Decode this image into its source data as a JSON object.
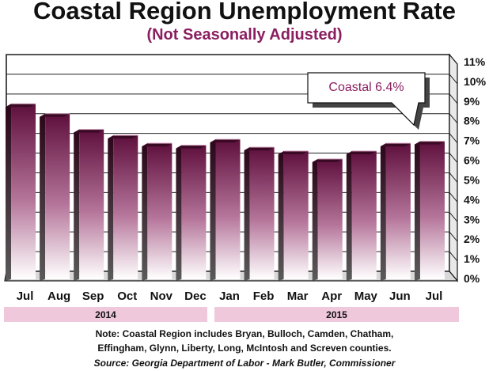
{
  "title": "Coastal Region Unemployment Rate",
  "subtitle": "(Not Seasonally Adjusted)",
  "chart_data": {
    "type": "bar",
    "title": "Coastal Region Unemployment Rate",
    "subtitle": "(Not Seasonally Adjusted)",
    "categories": [
      "Jul",
      "Aug",
      "Sep",
      "Oct",
      "Nov",
      "Dec",
      "Jan",
      "Feb",
      "Mar",
      "Apr",
      "May",
      "Jun",
      "Jul"
    ],
    "values": [
      8.5,
      8.0,
      7.2,
      6.9,
      6.5,
      6.4,
      6.7,
      6.3,
      6.1,
      5.7,
      6.1,
      6.5,
      6.6
    ],
    "ylim": [
      0,
      11
    ],
    "yticks": [
      "0%",
      "1%",
      "2%",
      "3%",
      "4%",
      "5%",
      "6%",
      "7%",
      "8%",
      "9%",
      "10%",
      "11%"
    ],
    "xlabel": "",
    "ylabel": "",
    "grid": true,
    "year_groups": [
      {
        "label": "2014",
        "start": 0,
        "end": 5
      },
      {
        "label": "2015",
        "start": 6,
        "end": 12
      }
    ],
    "annotation": "Coastal 6.4%",
    "colors": {
      "bar_top": "#5e0f3c",
      "bar_bottom": "#ffffff",
      "bar_face_dark": "#7a1a4e",
      "accent": "#8a1e5f",
      "band": "#efc8dc"
    }
  },
  "note": {
    "line1": "Note: Coastal Region includes Bryan, Bulloch, Camden, Chatham,",
    "line2": "Effingham, Glynn, Liberty, Long, McIntosh and Screven counties."
  },
  "source": "Source: Georgia Department of Labor - Mark Butler, Commissioner"
}
